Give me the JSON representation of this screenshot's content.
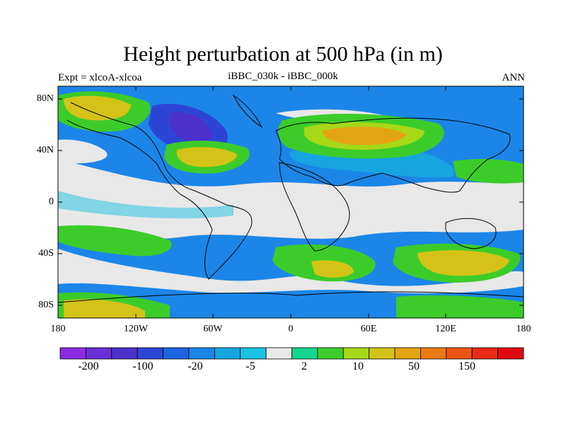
{
  "title": "Height perturbation at 500 hPa (in m)",
  "left_label": "Expt = xlcoA-xlcoa",
  "center_label": "iBBC_030k - iBBC_000k",
  "right_label": "ANN",
  "lat_ticks": [
    "80N",
    "40N",
    "0",
    "40S",
    "80S"
  ],
  "lon_ticks": [
    "180",
    "120W",
    "60W",
    "0",
    "60E",
    "120E",
    "180"
  ],
  "colorbar": {
    "colors": [
      "#8a2be2",
      "#6a2ed6",
      "#4b30cc",
      "#2d45d6",
      "#1e63e0",
      "#1b86e8",
      "#17a5e0",
      "#19c2e0",
      "#e8e8e8",
      "#16d48e",
      "#3ccc2a",
      "#a6d818",
      "#d4c316",
      "#e3a414",
      "#e97a14",
      "#ec5414",
      "#e82a16",
      "#e00a12"
    ],
    "labels": [
      "-200",
      "-100",
      "-20",
      "-5",
      "2",
      "10",
      "50",
      "150"
    ]
  }
}
